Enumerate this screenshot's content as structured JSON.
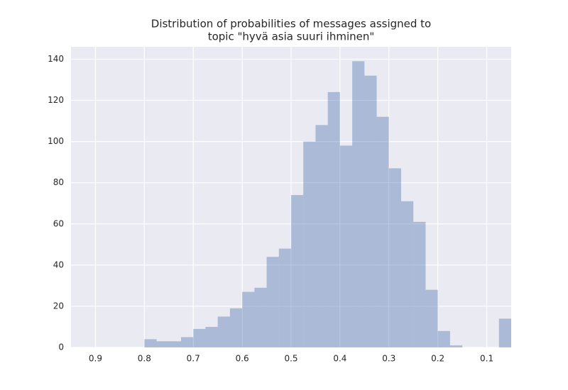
{
  "chart_data": {
    "type": "histogram",
    "title": [
      "Distribution of probabilities of messages assigned to",
      "topic \"hyvä asia suuri ihminen\""
    ],
    "bins": [
      0.05,
      0.075,
      0.1,
      0.125,
      0.15,
      0.175,
      0.2,
      0.225,
      0.25,
      0.275,
      0.3,
      0.325,
      0.35,
      0.375,
      0.4,
      0.425,
      0.45,
      0.475,
      0.5,
      0.525,
      0.55,
      0.575,
      0.6,
      0.625,
      0.65,
      0.675,
      0.7,
      0.725,
      0.75,
      0.775,
      0.8
    ],
    "values": [
      14,
      0,
      0,
      0,
      1,
      8,
      28,
      61,
      71,
      87,
      112,
      132,
      139,
      98,
      124,
      108,
      100,
      74,
      48,
      44,
      29,
      27,
      19,
      15,
      10,
      9,
      5,
      3,
      3,
      4
    ],
    "color": "#4c72b0",
    "alpha": 0.4,
    "xlim": [
      0.95,
      0.05
    ],
    "xticks": [
      0.9,
      0.8,
      0.7,
      0.6,
      0.5,
      0.4,
      0.3,
      0.2,
      0.1
    ],
    "ylim": [
      0,
      146
    ],
    "yticks": [
      0,
      20,
      40,
      60,
      80,
      100,
      120,
      140
    ],
    "grid": true
  }
}
